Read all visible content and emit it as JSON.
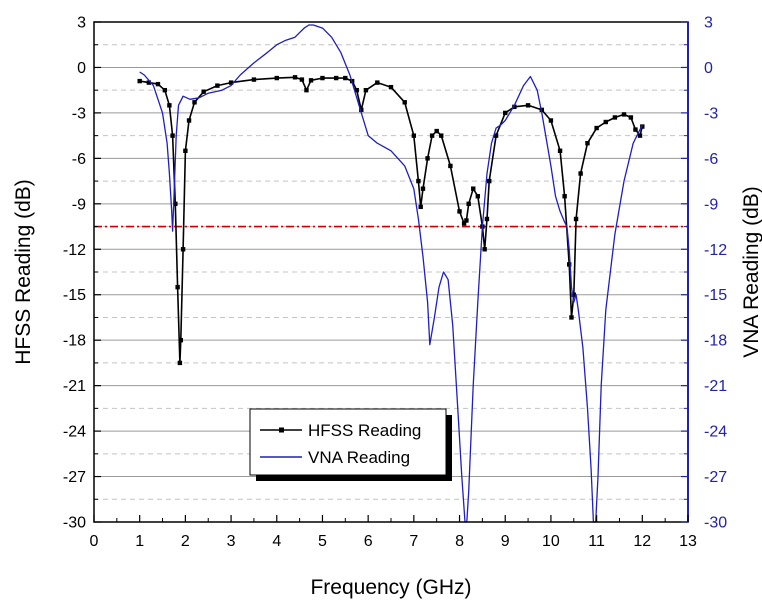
{
  "chart_data": {
    "type": "line",
    "title": "",
    "xlabel": "Frequency (GHz)",
    "ylabel_left": "HFSS Reading (dB)",
    "ylabel_right": "VNA Reading (dB)",
    "xlim": [
      0,
      13
    ],
    "ylim": [
      -30,
      3
    ],
    "x_ticks": [
      "0",
      "1",
      "2",
      "3",
      "4",
      "5",
      "6",
      "7",
      "8",
      "9",
      "10",
      "11",
      "12",
      "13"
    ],
    "y_ticks": [
      "3",
      "0",
      "-3",
      "-6",
      "-9",
      "-12",
      "-15",
      "-18",
      "-21",
      "-24",
      "-27",
      "-30"
    ],
    "grid": "horizontal dashed",
    "reference_line": {
      "y": -10.5,
      "style": "dash-dot",
      "color": "#cc0000"
    },
    "colors": {
      "hfss": "#000000",
      "vna": "#1f1fbf",
      "right_axis": "#2222aa"
    },
    "legend": {
      "position": "bottom-center",
      "entries": [
        "HFSS Reading",
        "VNA Reading"
      ]
    },
    "series": [
      {
        "name": "HFSS Reading",
        "axis": "left",
        "marker": "square",
        "x": [
          1.0,
          1.2,
          1.4,
          1.55,
          1.65,
          1.72,
          1.78,
          1.83,
          1.88,
          1.9,
          1.95,
          2.0,
          2.08,
          2.2,
          2.4,
          2.7,
          3.0,
          3.5,
          4.0,
          4.4,
          4.55,
          4.65,
          4.75,
          5.0,
          5.3,
          5.5,
          5.65,
          5.75,
          5.85,
          5.95,
          6.2,
          6.5,
          6.8,
          7.0,
          7.1,
          7.15,
          7.2,
          7.3,
          7.4,
          7.5,
          7.6,
          7.8,
          8.0,
          8.1,
          8.15,
          8.2,
          8.3,
          8.4,
          8.5,
          8.55,
          8.6,
          8.65,
          8.8,
          9.0,
          9.2,
          9.5,
          9.8,
          10.0,
          10.2,
          10.3,
          10.4,
          10.45,
          10.5,
          10.55,
          10.65,
          10.8,
          11.0,
          11.2,
          11.4,
          11.6,
          11.75,
          11.85,
          11.95,
          12.0
        ],
        "y": [
          -0.9,
          -1.0,
          -1.1,
          -1.5,
          -2.5,
          -4.5,
          -9.0,
          -14.5,
          -19.5,
          -18.0,
          -12.0,
          -5.5,
          -3.5,
          -2.3,
          -1.6,
          -1.2,
          -1.0,
          -0.8,
          -0.7,
          -0.65,
          -0.8,
          -1.5,
          -0.85,
          -0.7,
          -0.7,
          -0.7,
          -0.9,
          -1.5,
          -2.8,
          -1.5,
          -1.0,
          -1.3,
          -2.3,
          -4.5,
          -7.5,
          -9.2,
          -8.0,
          -6.0,
          -4.5,
          -4.2,
          -4.5,
          -6.5,
          -9.5,
          -10.3,
          -10.1,
          -9.0,
          -8.0,
          -8.5,
          -10.5,
          -12.0,
          -10.0,
          -7.5,
          -4.5,
          -3.0,
          -2.6,
          -2.5,
          -2.8,
          -3.5,
          -5.5,
          -8.5,
          -13.0,
          -16.5,
          -15.0,
          -10.0,
          -7.0,
          -5.0,
          -4.0,
          -3.6,
          -3.3,
          -3.1,
          -3.3,
          -4.1,
          -4.5,
          -3.9
        ]
      },
      {
        "name": "VNA Reading",
        "axis": "right",
        "marker": "none",
        "x": [
          1.0,
          1.1,
          1.3,
          1.5,
          1.6,
          1.65,
          1.7,
          1.72,
          1.75,
          1.8,
          1.85,
          1.95,
          2.1,
          2.3,
          2.5,
          2.8,
          3.0,
          3.2,
          3.5,
          3.8,
          4.0,
          4.2,
          4.4,
          4.5,
          4.6,
          4.7,
          4.8,
          5.0,
          5.2,
          5.4,
          5.6,
          5.8,
          6.0,
          6.2,
          6.5,
          6.8,
          7.0,
          7.1,
          7.2,
          7.3,
          7.35,
          7.45,
          7.55,
          7.65,
          7.75,
          7.85,
          7.95,
          8.05,
          8.12,
          8.16,
          8.2,
          8.3,
          8.4,
          8.5,
          8.6,
          8.7,
          8.8,
          8.9,
          9.0,
          9.2,
          9.4,
          9.55,
          9.7,
          9.8,
          10.0,
          10.1,
          10.2,
          10.3,
          10.35,
          10.4,
          10.45,
          10.5,
          10.55,
          10.6,
          10.7,
          10.8,
          10.88,
          10.93,
          10.98,
          11.03,
          11.1,
          11.2,
          11.4,
          11.6,
          11.8,
          12.0
        ],
        "y": [
          -0.3,
          -0.5,
          -1.2,
          -3.0,
          -5.0,
          -7.0,
          -9.5,
          -10.8,
          -8.5,
          -4.5,
          -2.5,
          -1.9,
          -2.1,
          -2.0,
          -1.7,
          -1.5,
          -1.2,
          -0.5,
          0.3,
          1.0,
          1.5,
          1.8,
          2.0,
          2.3,
          2.6,
          2.8,
          2.8,
          2.6,
          2.0,
          1.0,
          -0.5,
          -2.5,
          -4.5,
          -5.0,
          -5.5,
          -6.5,
          -8.0,
          -10.0,
          -12.5,
          -15.5,
          -18.3,
          -16.5,
          -14.5,
          -13.5,
          -14.0,
          -17.0,
          -22.0,
          -27.0,
          -30.0,
          -30.0,
          -28.0,
          -21.0,
          -15.5,
          -10.5,
          -7.0,
          -5.0,
          -4.0,
          -3.8,
          -3.5,
          -2.5,
          -1.2,
          -0.6,
          -1.5,
          -3.0,
          -6.5,
          -8.5,
          -9.5,
          -10.2,
          -10.5,
          -12.0,
          -14.5,
          -15.5,
          -15.0,
          -16.0,
          -18.5,
          -22.5,
          -26.5,
          -30.0,
          -30.0,
          -27.0,
          -21.0,
          -16.0,
          -11.0,
          -7.5,
          -5.0,
          -3.8
        ]
      }
    ]
  }
}
